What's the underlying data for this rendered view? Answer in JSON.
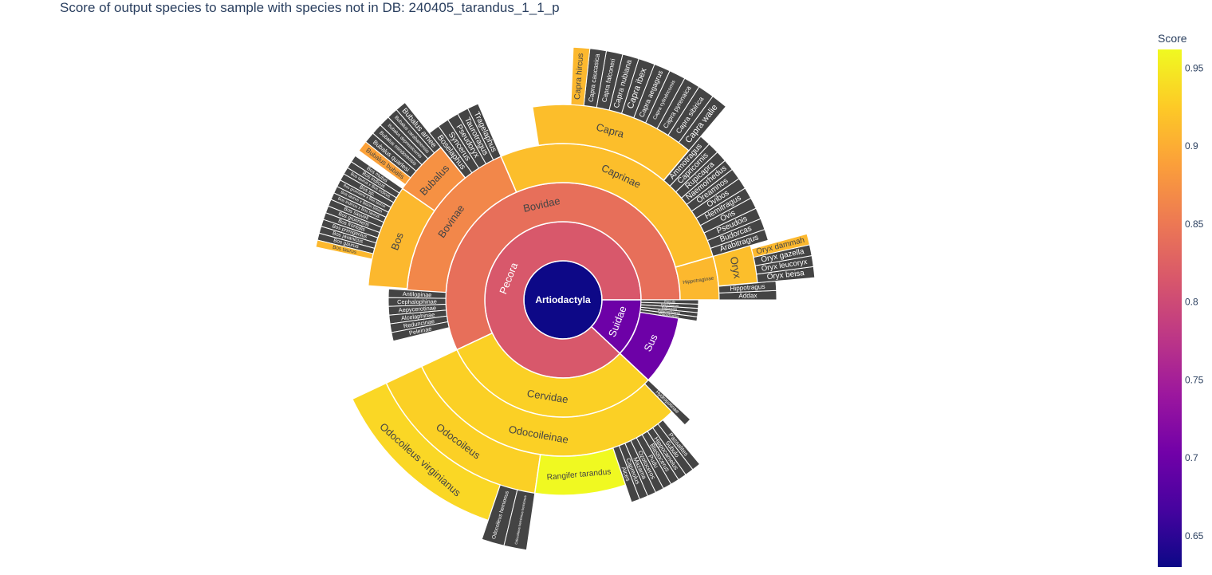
{
  "chart_data": {
    "type": "sunburst",
    "title": "Score of output species to sample with species not in DB: 240405_tarandus_1_1_p",
    "colorbar": {
      "title": "Score",
      "range": [
        0.63,
        0.962
      ],
      "ticks": [
        "0.65",
        "0.7",
        "0.75",
        "0.8",
        "0.85",
        "0.9",
        "0.95"
      ],
      "tick_values": [
        0.65,
        0.7,
        0.75,
        0.8,
        0.85,
        0.9,
        0.95
      ]
    },
    "colorscale": [
      "#0d0887",
      "#46039f",
      "#7201a8",
      "#9c179e",
      "#bd3786",
      "#d8576b",
      "#ed7953",
      "#fb9f3a",
      "#fdca26",
      "#f0f921"
    ],
    "root": {
      "name": "Artiodactyla",
      "value": 100,
      "score": 0.63,
      "children": [
        {
          "name": "Pecora",
          "value": 88,
          "score": 0.815,
          "children": [
            {
              "name": "Bovidae",
              "value": 57,
              "score": 0.84,
              "children": [
                {
                  "name": "Hippotraginae",
                  "value": 4.5,
                  "score": 0.91,
                  "children": [
                    {
                      "name": "Addax",
                      "value": 0.7,
                      "score": 0.6,
                      "leaf": true
                    },
                    {
                      "name": "Hippotragus",
                      "value": 0.7,
                      "score": 0.6,
                      "leaf": true
                    },
                    {
                      "name": "Oryx",
                      "value": 3.1,
                      "score": 0.915,
                      "children": [
                        {
                          "name": "Oryx beisa",
                          "value": 0.7,
                          "score": 0.6,
                          "leaf": true
                        },
                        {
                          "name": "Oryx leucoryx",
                          "value": 0.7,
                          "score": 0.6,
                          "leaf": true
                        },
                        {
                          "name": "Oryx gazella",
                          "value": 0.7,
                          "score": 0.6,
                          "leaf": true
                        },
                        {
                          "name": "Oryx dammah",
                          "value": 0.7,
                          "score": 0.91,
                          "leaf": true
                        }
                      ]
                    }
                  ]
                },
                {
                  "name": "Caprinae",
                  "value": 27,
                  "score": 0.915,
                  "children": [
                    {
                      "name": "Arabitragus",
                      "value": 0.85,
                      "score": 0.6,
                      "leaf": true
                    },
                    {
                      "name": "Budorcas",
                      "value": 0.85,
                      "score": 0.6,
                      "leaf": true
                    },
                    {
                      "name": "Pseudois",
                      "value": 0.85,
                      "score": 0.6,
                      "leaf": true
                    },
                    {
                      "name": "Ovis",
                      "value": 0.85,
                      "score": 0.6,
                      "leaf": true
                    },
                    {
                      "name": "Hemitragus",
                      "value": 0.85,
                      "score": 0.6,
                      "leaf": true
                    },
                    {
                      "name": "Ovibos",
                      "value": 0.85,
                      "score": 0.6,
                      "leaf": true
                    },
                    {
                      "name": "Oreamnos",
                      "value": 0.85,
                      "score": 0.6,
                      "leaf": true
                    },
                    {
                      "name": "Naemorhedus",
                      "value": 0.85,
                      "score": 0.6,
                      "leaf": true
                    },
                    {
                      "name": "Rupicapra",
                      "value": 0.85,
                      "score": 0.6,
                      "leaf": true
                    },
                    {
                      "name": "Capricornis",
                      "value": 0.85,
                      "score": 0.6,
                      "leaf": true
                    },
                    {
                      "name": "Ammotragus",
                      "value": 0.85,
                      "score": 0.6,
                      "leaf": true
                    },
                    {
                      "name": "Capra",
                      "value": 13.65,
                      "score": 0.915,
                      "children": [
                        {
                          "name": "Capra walie",
                          "value": 1.05,
                          "score": 0.6,
                          "leaf": true
                        },
                        {
                          "name": "Capra sibirica",
                          "value": 1.05,
                          "score": 0.6,
                          "leaf": true
                        },
                        {
                          "name": "Capra pyrenaica",
                          "value": 1.05,
                          "score": 0.6,
                          "leaf": true
                        },
                        {
                          "name": "Capra cylindricornis",
                          "value": 1.05,
                          "score": 0.6,
                          "leaf": true
                        },
                        {
                          "name": "Capra aegagrus",
                          "value": 1.05,
                          "score": 0.6,
                          "leaf": true
                        },
                        {
                          "name": "Capra ibex",
                          "value": 1.05,
                          "score": 0.6,
                          "leaf": true
                        },
                        {
                          "name": "Capra nubiana",
                          "value": 1.05,
                          "score": 0.6,
                          "leaf": true
                        },
                        {
                          "name": "Capra falconeri",
                          "value": 1.05,
                          "score": 0.6,
                          "leaf": true
                        },
                        {
                          "name": "Capra caucasica",
                          "value": 1.05,
                          "score": 0.6,
                          "leaf": true
                        },
                        {
                          "name": "Capra hircus",
                          "value": 1.05,
                          "score": 0.91,
                          "leaf": true
                        }
                      ]
                    }
                  ]
                },
                {
                  "name": "Bovinae",
                  "value": 17.5,
                  "score": 0.865,
                  "children": [
                    {
                      "name": "Tragelaphus",
                      "value": 0.85,
                      "score": 0.6,
                      "leaf": true
                    },
                    {
                      "name": "Taurotragus",
                      "value": 0.85,
                      "score": 0.6,
                      "leaf": true
                    },
                    {
                      "name": "Pseudoryx",
                      "value": 0.85,
                      "score": 0.6,
                      "leaf": true
                    },
                    {
                      "name": "Syncerus",
                      "value": 0.85,
                      "score": 0.6,
                      "leaf": true
                    },
                    {
                      "name": "Boselaphus",
                      "value": 0.85,
                      "score": 0.6,
                      "leaf": true
                    },
                    {
                      "name": "Bubalus",
                      "value": 4.6,
                      "score": 0.875,
                      "children": [
                        {
                          "name": "Bubalus arnee",
                          "value": 0.7,
                          "score": 0.6,
                          "leaf": true
                        },
                        {
                          "name": "Bubalus carabanensis",
                          "value": 0.7,
                          "score": 0.6,
                          "leaf": true
                        },
                        {
                          "name": "Bubalus depressicornis",
                          "value": 0.7,
                          "score": 0.6,
                          "leaf": true
                        },
                        {
                          "name": "Bubalus mindorensis",
                          "value": 0.7,
                          "score": 0.6,
                          "leaf": true
                        },
                        {
                          "name": "Bubalus quarlesi",
                          "value": 0.7,
                          "score": 0.6,
                          "leaf": true
                        },
                        {
                          "name": "Bubalus bubalis",
                          "value": 0.7,
                          "score": 0.89,
                          "leaf": true
                        }
                      ]
                    },
                    {
                      "name": "Bos",
                      "value": 8.5,
                      "score": 0.91,
                      "children": [
                        {
                          "name": "Bos mutus",
                          "value": 0.45,
                          "score": 0.6,
                          "leaf": true
                        },
                        {
                          "name": "Bos indicus",
                          "value": 0.45,
                          "score": 0.6,
                          "leaf": true
                        },
                        {
                          "name": "Bos taurus x Bos indicus",
                          "value": 0.45,
                          "score": 0.6,
                          "leaf": true
                        },
                        {
                          "name": "Bos sp.",
                          "value": 0.45,
                          "score": 0.6,
                          "leaf": true
                        },
                        {
                          "name": "Bos grunniens x Bos taurus",
                          "value": 0.45,
                          "score": 0.6,
                          "leaf": true
                        },
                        {
                          "name": "Bos taurus x Bison bison",
                          "value": 0.45,
                          "score": 0.6,
                          "leaf": true
                        },
                        {
                          "name": "Bos indicus x Bos taurus",
                          "value": 0.45,
                          "score": 0.6,
                          "leaf": true
                        },
                        {
                          "name": "Bos sauveli",
                          "value": 0.45,
                          "score": 0.6,
                          "leaf": true
                        },
                        {
                          "name": "Bos grunniens",
                          "value": 0.45,
                          "score": 0.6,
                          "leaf": true
                        },
                        {
                          "name": "Bos frontalis",
                          "value": 0.45,
                          "score": 0.6,
                          "leaf": true
                        },
                        {
                          "name": "Bos primigenius",
                          "value": 0.45,
                          "score": 0.6,
                          "leaf": true
                        },
                        {
                          "name": "Bos javanicus",
                          "value": 0.45,
                          "score": 0.6,
                          "leaf": true
                        },
                        {
                          "name": "Bos gaurus",
                          "value": 0.45,
                          "score": 0.6,
                          "leaf": true
                        },
                        {
                          "name": "Bos taurus",
                          "value": 0.45,
                          "score": 0.91,
                          "leaf": true
                        }
                      ]
                    }
                  ]
                },
                {
                  "name": "Antilopinae",
                  "value": 0.8,
                  "score": 0.6,
                  "leaf": true
                },
                {
                  "name": "Cephalophinae",
                  "value": 0.8,
                  "score": 0.6,
                  "leaf": true
                },
                {
                  "name": "Aepycerotinae",
                  "value": 0.8,
                  "score": 0.6,
                  "leaf": true
                },
                {
                  "name": "Alcelaphinae",
                  "value": 0.8,
                  "score": 0.6,
                  "leaf": true
                },
                {
                  "name": "Reduncinae",
                  "value": 0.8,
                  "score": 0.6,
                  "leaf": true
                },
                {
                  "name": "Peleinae",
                  "value": 0.8,
                  "score": 0.6,
                  "leaf": true
                }
              ]
            },
            {
              "name": "Cervidae",
              "value": 31,
              "score": 0.93,
              "children": [
                {
                  "name": "Odocoileinae",
                  "value": 30.3,
                  "score": 0.93,
                  "children": [
                    {
                      "name": "Odocoileus",
                      "value": 15.7,
                      "score": 0.93,
                      "children": [
                        {
                          "name": "Odocoileus virginianus",
                          "value": 12.8,
                          "score": 0.935
                        },
                        {
                          "name": "Odocoileus hemionus",
                          "value": 1.45,
                          "score": 0.6,
                          "leaf": true
                        },
                        {
                          "name": "Odocoileus hemionus hemionus",
                          "value": 1.45,
                          "score": 0.6,
                          "leaf": true
                        }
                      ]
                    },
                    {
                      "name": "Rangifer tarandus",
                      "value": 7.5,
                      "score": 0.962
                    },
                    {
                      "name": "Alces",
                      "value": 0.65,
                      "score": 0.6,
                      "leaf": true
                    },
                    {
                      "name": "Capreolus",
                      "value": 0.65,
                      "score": 0.6,
                      "leaf": true
                    },
                    {
                      "name": "Mazama",
                      "value": 0.65,
                      "score": 0.6,
                      "leaf": true
                    },
                    {
                      "name": "Ozotoceros",
                      "value": 0.65,
                      "score": 0.6,
                      "leaf": true
                    },
                    {
                      "name": "Pudu",
                      "value": 0.65,
                      "score": 0.6,
                      "leaf": true
                    },
                    {
                      "name": "Blastocerus",
                      "value": 0.65,
                      "score": 0.6,
                      "leaf": true
                    },
                    {
                      "name": "Hippocamelus",
                      "value": 0.65,
                      "score": 0.6,
                      "leaf": true
                    },
                    {
                      "name": "Subulo",
                      "value": 0.65,
                      "score": 0.6,
                      "leaf": true
                    },
                    {
                      "name": "Passalites",
                      "value": 0.65,
                      "score": 0.6,
                      "leaf": true
                    }
                  ]
                },
                {
                  "name": "Hydropotinae",
                  "value": 0.7,
                  "score": 0.6,
                  "leaf": true
                }
              ]
            }
          ]
        },
        {
          "name": "Suidae",
          "value": 12,
          "score": 0.7,
          "children": [
            {
              "name": "Sus",
              "value": 9.5,
              "score": 0.7
            },
            {
              "name": "Phacochoerus",
              "value": 0.5,
              "score": 0.6,
              "leaf": true
            },
            {
              "name": "Potamochoerus",
              "value": 0.5,
              "score": 0.6,
              "leaf": true
            },
            {
              "name": "Babyrousa",
              "value": 0.5,
              "score": 0.6,
              "leaf": true
            },
            {
              "name": "Hylochoerus",
              "value": 0.5,
              "score": 0.6,
              "leaf": true
            },
            {
              "name": "Porcula",
              "value": 0.5,
              "score": 0.6,
              "leaf": true
            }
          ]
        }
      ]
    }
  }
}
